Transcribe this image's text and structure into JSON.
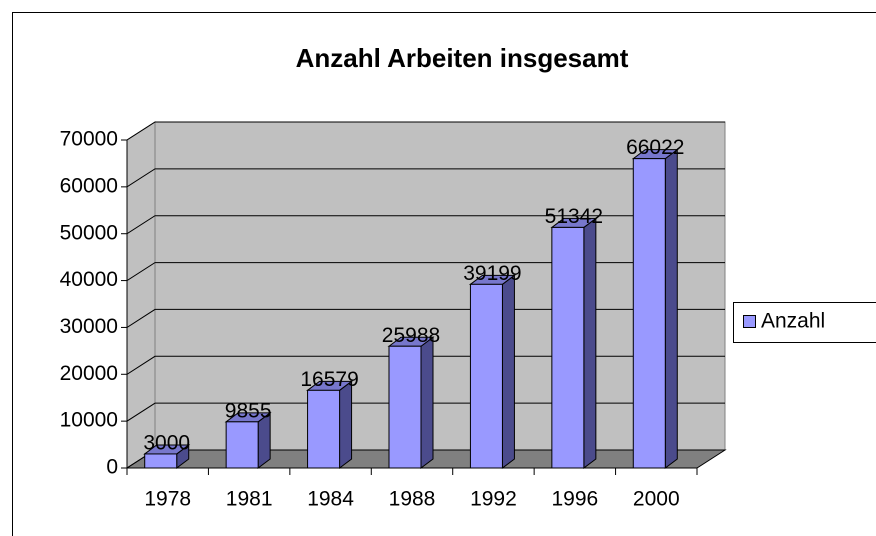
{
  "chart_data": {
    "type": "bar3d",
    "title": "Anzahl Arbeiten insgesamt",
    "categories": [
      "1978",
      "1981",
      "1984",
      "1988",
      "1992",
      "1996",
      "2000"
    ],
    "series": [
      {
        "name": "Anzahl",
        "color": "#9999ff",
        "values": [
          3000,
          9855,
          16579,
          25988,
          39199,
          51342,
          66022
        ]
      }
    ],
    "ylim": [
      0,
      70000
    ],
    "yticks": [
      0,
      10000,
      20000,
      30000,
      40000,
      50000,
      60000,
      70000
    ],
    "grid": true,
    "legend": "right"
  }
}
